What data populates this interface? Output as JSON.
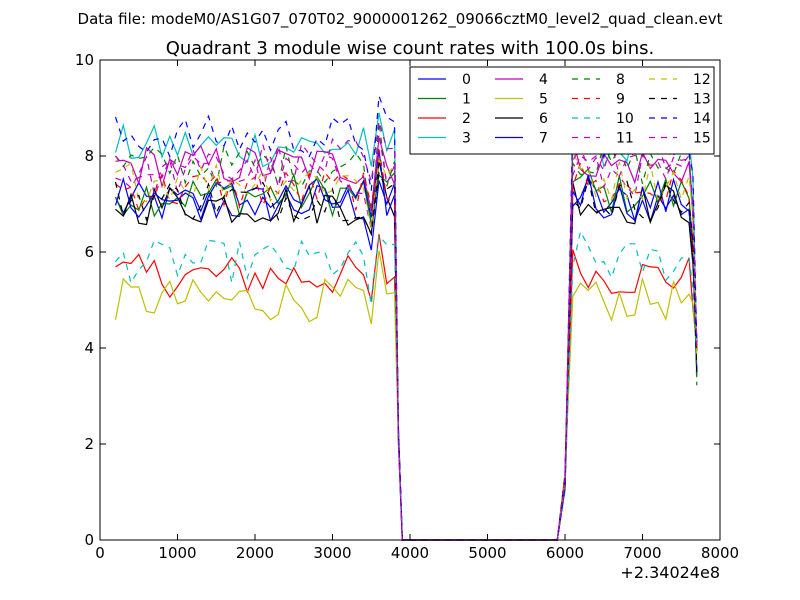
{
  "header": {
    "suptitle": "Data file: modeM0/AS1G07_070T02_9000001262_09066cztM0_level2_quad_clean.evt"
  },
  "chart_data": {
    "type": "line",
    "title": "Quadrant 3 module wise count rates with 100.0s bins.",
    "xlabel": "",
    "ylabel": "",
    "x_offset_label": "+2.34024e8",
    "xlim": [
      0,
      8000
    ],
    "ylim": [
      0,
      10
    ],
    "xticks": [
      0,
      1000,
      2000,
      3000,
      4000,
      5000,
      6000,
      7000,
      8000
    ],
    "yticks": [
      0,
      2,
      4,
      6,
      8,
      10
    ],
    "grid": false,
    "legend": {
      "placement": "top-right",
      "columns": 4
    },
    "x": [
      200,
      300,
      400,
      500,
      600,
      700,
      800,
      900,
      1000,
      1100,
      1200,
      1300,
      1400,
      1500,
      1600,
      1700,
      1800,
      1900,
      2000,
      2100,
      2200,
      2300,
      2400,
      2500,
      2600,
      2700,
      2800,
      2900,
      3000,
      3100,
      3200,
      3300,
      3400,
      3500,
      3600,
      3700,
      3800,
      3850,
      3900,
      4000,
      5000,
      5900,
      6000,
      6100,
      6200,
      6300,
      6400,
      6500,
      6600,
      6700,
      6800,
      6900,
      7000,
      7100,
      7200,
      7300,
      7400,
      7500,
      7600,
      7650,
      7700
    ],
    "series": [
      {
        "name": "0",
        "color": "#0000ff",
        "dash": "solid",
        "base": 7.0
      },
      {
        "name": "1",
        "color": "#008000",
        "dash": "solid",
        "base": 7.2
      },
      {
        "name": "2",
        "color": "#ff0000",
        "dash": "solid",
        "base": 5.5
      },
      {
        "name": "3",
        "color": "#00bfbf",
        "dash": "solid",
        "base": 8.2
      },
      {
        "name": "4",
        "color": "#bf00bf",
        "dash": "solid",
        "base": 7.8
      },
      {
        "name": "5",
        "color": "#bfbf00",
        "dash": "solid",
        "base": 5.0
      },
      {
        "name": "6",
        "color": "#000000",
        "dash": "solid",
        "base": 7.0
      },
      {
        "name": "7",
        "color": "#0000ff",
        "dash": "solid",
        "base": 7.1
      },
      {
        "name": "8",
        "color": "#008000",
        "dash": "dashed",
        "base": 7.8
      },
      {
        "name": "9",
        "color": "#ff0000",
        "dash": "dashed",
        "base": 7.3
      },
      {
        "name": "10",
        "color": "#00bfbf",
        "dash": "dashed",
        "base": 5.8
      },
      {
        "name": "11",
        "color": "#bf00bf",
        "dash": "dashed",
        "base": 7.6
      },
      {
        "name": "12",
        "color": "#bfbf00",
        "dash": "dashed",
        "base": 7.5
      },
      {
        "name": "13",
        "color": "#000000",
        "dash": "dashed",
        "base": 7.1
      },
      {
        "name": "14",
        "color": "#0000ff",
        "dash": "dashed",
        "base": 8.4
      },
      {
        "name": "15",
        "color": "#bf00bf",
        "dash": "dashed",
        "base": 7.9
      }
    ]
  }
}
